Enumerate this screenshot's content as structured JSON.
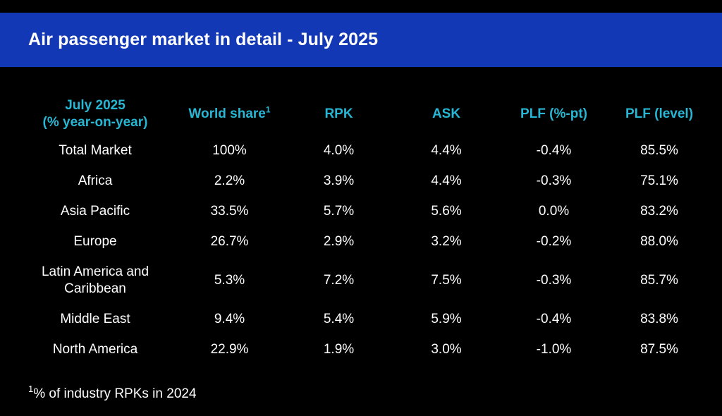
{
  "title": "Air passenger market in detail - July 2025",
  "table": {
    "headers": {
      "region_line1": "July 2025",
      "region_line2": "(% year-on-year)",
      "world_share": "World share",
      "world_share_note": "1",
      "rpk": "RPK",
      "ask": "ASK",
      "plf_pt": "PLF (%-pt)",
      "plf_level": "PLF (level)"
    },
    "rows": [
      {
        "region": "Total Market",
        "world_share": "100%",
        "rpk": "4.0%",
        "ask": "4.4%",
        "plf_pt": "-0.4%",
        "plf_level": "85.5%"
      },
      {
        "region": "Africa",
        "world_share": "2.2%",
        "rpk": "3.9%",
        "ask": "4.4%",
        "plf_pt": "-0.3%",
        "plf_level": "75.1%"
      },
      {
        "region": "Asia Pacific",
        "world_share": "33.5%",
        "rpk": "5.7%",
        "ask": "5.6%",
        "plf_pt": "0.0%",
        "plf_level": "83.2%"
      },
      {
        "region": "Europe",
        "world_share": "26.7%",
        "rpk": "2.9%",
        "ask": "3.2%",
        "plf_pt": "-0.2%",
        "plf_level": "88.0%"
      },
      {
        "region": "Latin America and Caribbean",
        "region_line1": "Latin America and",
        "region_line2": "Caribbean",
        "world_share": "5.3%",
        "rpk": "7.2%",
        "ask": "7.5%",
        "plf_pt": "-0.3%",
        "plf_level": "85.7%"
      },
      {
        "region": "Middle East",
        "world_share": "9.4%",
        "rpk": "5.4%",
        "ask": "5.9%",
        "plf_pt": "-0.4%",
        "plf_level": "83.8%"
      },
      {
        "region": "North America",
        "world_share": "22.9%",
        "rpk": "1.9%",
        "ask": "3.0%",
        "plf_pt": "-1.0%",
        "plf_level": "87.5%"
      }
    ]
  },
  "footnote": {
    "marker": "1",
    "text": "% of industry RPKs in 2024"
  },
  "colors": {
    "banner": "#1338b6",
    "header_text": "#27b6d3",
    "background": "#000000",
    "body_text": "#ffffff"
  }
}
